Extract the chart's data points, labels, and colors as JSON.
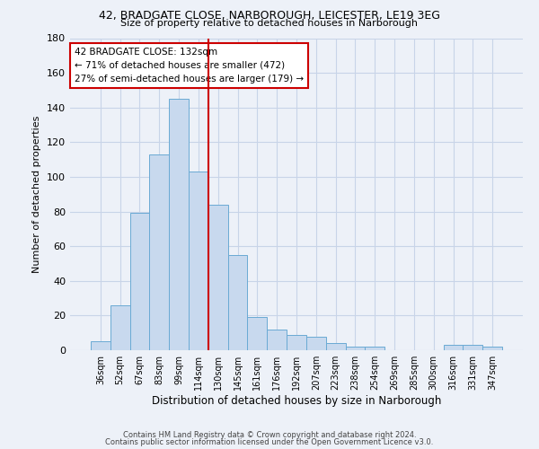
{
  "title1": "42, BRADGATE CLOSE, NARBOROUGH, LEICESTER, LE19 3EG",
  "title2": "Size of property relative to detached houses in Narborough",
  "xlabel": "Distribution of detached houses by size in Narborough",
  "ylabel": "Number of detached properties",
  "footer1": "Contains HM Land Registry data © Crown copyright and database right 2024.",
  "footer2": "Contains public sector information licensed under the Open Government Licence v3.0.",
  "annotation_line1": "42 BRADGATE CLOSE: 132sqm",
  "annotation_line2": "← 71% of detached houses are smaller (472)",
  "annotation_line3": "27% of semi-detached houses are larger (179) →",
  "bar_color": "#c8d9ee",
  "bar_edge_color": "#6aaad4",
  "vline_color": "#cc0000",
  "categories": [
    "36sqm",
    "52sqm",
    "67sqm",
    "83sqm",
    "99sqm",
    "114sqm",
    "130sqm",
    "145sqm",
    "161sqm",
    "176sqm",
    "192sqm",
    "207sqm",
    "223sqm",
    "238sqm",
    "254sqm",
    "269sqm",
    "285sqm",
    "300sqm",
    "316sqm",
    "331sqm",
    "347sqm"
  ],
  "values": [
    5,
    26,
    79,
    113,
    145,
    103,
    84,
    55,
    19,
    12,
    9,
    8,
    4,
    2,
    2,
    0,
    0,
    0,
    3,
    3,
    2
  ],
  "ylim": [
    0,
    180
  ],
  "yticks": [
    0,
    20,
    40,
    60,
    80,
    100,
    120,
    140,
    160,
    180
  ],
  "grid_color": "#c8d4e8",
  "background_color": "#edf1f8"
}
